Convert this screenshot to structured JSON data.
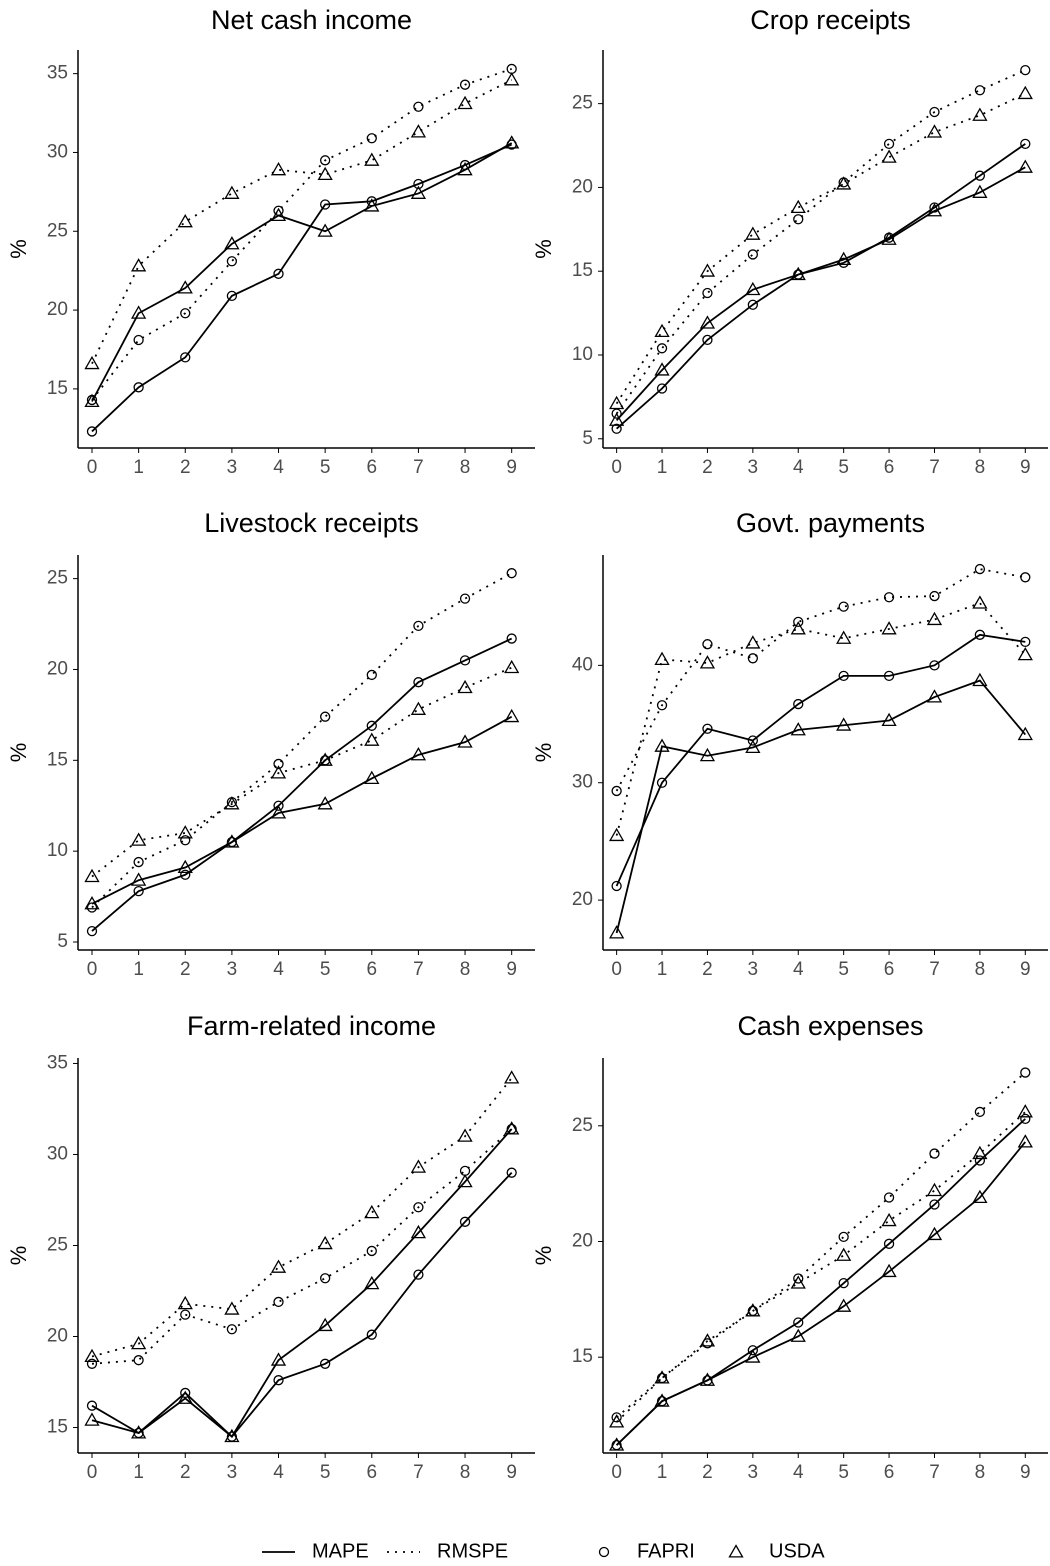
{
  "chart_data": [
    {
      "type": "line",
      "title": "Net cash income",
      "y_label": "%",
      "xlim": [
        -0.3,
        9.5
      ],
      "xticks": [
        0,
        1,
        2,
        3,
        4,
        5,
        6,
        7,
        8,
        9
      ],
      "ylim": [
        11.25,
        36.5
      ],
      "yticks": [
        15,
        20,
        25,
        30,
        35
      ],
      "x": [
        0,
        1,
        2,
        3,
        4,
        5,
        6,
        7,
        8,
        9
      ],
      "series": [
        {
          "linestyle": "solid",
          "marker": "circle",
          "color": "#000000",
          "values": [
            12.3,
            15.1,
            17.0,
            20.9,
            22.3,
            26.7,
            26.9,
            28.0,
            29.2,
            30.5
          ]
        },
        {
          "linestyle": "solid",
          "marker": "triangle",
          "color": "#000000",
          "values": [
            14.2,
            19.8,
            21.4,
            24.2,
            26.0,
            25.0,
            26.6,
            27.4,
            28.9,
            30.6
          ]
        },
        {
          "linestyle": "dotted",
          "marker": "circle",
          "color": "#000000",
          "values": [
            14.3,
            18.1,
            19.8,
            23.1,
            26.3,
            29.5,
            30.9,
            32.9,
            34.3,
            35.3
          ]
        },
        {
          "linestyle": "dotted",
          "marker": "triangle",
          "color": "#000000",
          "values": [
            16.6,
            22.8,
            25.6,
            27.4,
            28.9,
            28.6,
            29.5,
            31.3,
            33.1,
            34.6
          ]
        }
      ]
    },
    {
      "type": "line",
      "title": "Crop receipts",
      "y_label": "%",
      "xlim": [
        -0.3,
        9.5
      ],
      "xticks": [
        0,
        1,
        2,
        3,
        4,
        5,
        6,
        7,
        8,
        9
      ],
      "ylim": [
        4.45,
        28.2
      ],
      "yticks": [
        5,
        10,
        15,
        20,
        25
      ],
      "x": [
        0,
        1,
        2,
        3,
        4,
        5,
        6,
        7,
        8,
        9
      ],
      "series": [
        {
          "linestyle": "solid",
          "marker": "circle",
          "color": "#000000",
          "values": [
            5.6,
            8.0,
            10.9,
            13.0,
            14.8,
            15.5,
            17.0,
            18.8,
            20.7,
            22.6
          ]
        },
        {
          "linestyle": "solid",
          "marker": "triangle",
          "color": "#000000",
          "values": [
            6.1,
            9.1,
            11.9,
            13.9,
            14.8,
            15.7,
            16.9,
            18.6,
            19.7,
            21.2
          ]
        },
        {
          "linestyle": "dotted",
          "marker": "circle",
          "color": "#000000",
          "values": [
            6.5,
            10.4,
            13.7,
            16.0,
            18.1,
            20.3,
            22.6,
            24.5,
            25.8,
            27.0
          ]
        },
        {
          "linestyle": "dotted",
          "marker": "triangle",
          "color": "#000000",
          "values": [
            7.1,
            11.4,
            15.0,
            17.2,
            18.8,
            20.2,
            21.8,
            23.3,
            24.3,
            25.6
          ]
        }
      ]
    },
    {
      "type": "line",
      "title": "Livestock receipts",
      "y_label": "%",
      "xlim": [
        -0.3,
        9.5
      ],
      "xticks": [
        0,
        1,
        2,
        3,
        4,
        5,
        6,
        7,
        8,
        9
      ],
      "ylim": [
        4.56,
        26.3
      ],
      "yticks": [
        5,
        10,
        15,
        20,
        25
      ],
      "x": [
        0,
        1,
        2,
        3,
        4,
        5,
        6,
        7,
        8,
        9
      ],
      "series": [
        {
          "linestyle": "solid",
          "marker": "circle",
          "color": "#000000",
          "values": [
            5.6,
            7.8,
            8.7,
            10.5,
            12.5,
            15.0,
            16.9,
            19.3,
            20.5,
            21.7
          ]
        },
        {
          "linestyle": "solid",
          "marker": "triangle",
          "color": "#000000",
          "values": [
            7.1,
            8.4,
            9.1,
            10.5,
            12.1,
            12.6,
            14.0,
            15.3,
            16.0,
            17.4
          ]
        },
        {
          "linestyle": "dotted",
          "marker": "circle",
          "color": "#000000",
          "values": [
            6.9,
            9.4,
            10.6,
            12.7,
            14.8,
            17.4,
            19.7,
            22.4,
            23.9,
            25.3
          ]
        },
        {
          "linestyle": "dotted",
          "marker": "triangle",
          "color": "#000000",
          "values": [
            8.6,
            10.6,
            11.0,
            12.6,
            14.3,
            15.0,
            16.1,
            17.8,
            19.0,
            20.1
          ]
        }
      ]
    },
    {
      "type": "line",
      "title": "Govt. payments",
      "y_label": "%",
      "xlim": [
        -0.3,
        9.5
      ],
      "xticks": [
        0,
        1,
        2,
        3,
        4,
        5,
        6,
        7,
        8,
        9
      ],
      "ylim": [
        15.75,
        49.4
      ],
      "yticks": [
        20,
        30,
        40
      ],
      "x": [
        0,
        1,
        2,
        3,
        4,
        5,
        6,
        7,
        8,
        9
      ],
      "series": [
        {
          "linestyle": "solid",
          "marker": "circle",
          "color": "#000000",
          "values": [
            21.2,
            30.0,
            34.6,
            33.6,
            36.7,
            39.1,
            39.1,
            40.0,
            42.6,
            42.0
          ]
        },
        {
          "linestyle": "solid",
          "marker": "triangle",
          "color": "#000000",
          "values": [
            17.2,
            33.1,
            32.3,
            33.0,
            34.5,
            34.9,
            35.3,
            37.3,
            38.7,
            34.1
          ]
        },
        {
          "linestyle": "dotted",
          "marker": "circle",
          "color": "#000000",
          "values": [
            29.3,
            36.6,
            41.8,
            40.6,
            43.7,
            45.0,
            45.8,
            45.9,
            48.2,
            47.5
          ]
        },
        {
          "linestyle": "dotted",
          "marker": "triangle",
          "color": "#000000",
          "values": [
            25.5,
            40.5,
            40.2,
            41.9,
            43.1,
            42.3,
            43.1,
            43.9,
            45.3,
            40.9
          ]
        }
      ]
    },
    {
      "type": "line",
      "title": "Farm-related income",
      "y_label": "%",
      "xlim": [
        -0.3,
        9.5
      ],
      "xticks": [
        0,
        1,
        2,
        3,
        4,
        5,
        6,
        7,
        8,
        9
      ],
      "ylim": [
        13.6,
        35.3
      ],
      "yticks": [
        15,
        20,
        25,
        30,
        35
      ],
      "x": [
        0,
        1,
        2,
        3,
        4,
        5,
        6,
        7,
        8,
        9
      ],
      "series": [
        {
          "linestyle": "solid",
          "marker": "circle",
          "color": "#000000",
          "values": [
            16.2,
            14.7,
            16.9,
            14.5,
            17.6,
            18.5,
            20.1,
            23.4,
            26.3,
            29.0
          ]
        },
        {
          "linestyle": "solid",
          "marker": "triangle",
          "color": "#000000",
          "values": [
            15.4,
            14.7,
            16.6,
            14.5,
            18.7,
            20.6,
            22.9,
            25.7,
            28.5,
            31.4
          ]
        },
        {
          "linestyle": "dotted",
          "marker": "circle",
          "color": "#000000",
          "values": [
            18.5,
            18.7,
            21.2,
            20.4,
            21.9,
            23.2,
            24.7,
            27.1,
            29.1,
            31.4
          ]
        },
        {
          "linestyle": "dotted",
          "marker": "triangle",
          "color": "#000000",
          "values": [
            18.9,
            19.6,
            21.8,
            21.5,
            23.8,
            25.1,
            26.8,
            29.3,
            31.0,
            34.2
          ]
        }
      ]
    },
    {
      "type": "line",
      "title": "Cash expenses",
      "y_label": "%",
      "xlim": [
        -0.3,
        9.5
      ],
      "xticks": [
        0,
        1,
        2,
        3,
        4,
        5,
        6,
        7,
        8,
        9
      ],
      "ylim": [
        10.86,
        27.93
      ],
      "yticks": [
        15,
        20,
        25
      ],
      "x": [
        0,
        1,
        2,
        3,
        4,
        5,
        6,
        7,
        8,
        9
      ],
      "series": [
        {
          "linestyle": "solid",
          "marker": "circle",
          "color": "#000000",
          "values": [
            11.2,
            13.1,
            14.0,
            15.3,
            16.5,
            18.2,
            19.9,
            21.6,
            23.5,
            25.3
          ]
        },
        {
          "linestyle": "solid",
          "marker": "triangle",
          "color": "#000000",
          "values": [
            11.2,
            13.1,
            14.0,
            15.0,
            15.9,
            17.2,
            18.7,
            20.3,
            21.9,
            24.3
          ]
        },
        {
          "linestyle": "dotted",
          "marker": "circle",
          "color": "#000000",
          "values": [
            12.4,
            14.1,
            15.6,
            17.0,
            18.4,
            20.2,
            21.9,
            23.8,
            25.6,
            27.3
          ]
        },
        {
          "linestyle": "dotted",
          "marker": "triangle",
          "color": "#000000",
          "values": [
            12.2,
            14.1,
            15.7,
            17.0,
            18.2,
            19.4,
            20.9,
            22.2,
            23.8,
            25.6
          ]
        }
      ]
    }
  ],
  "legend": [
    {
      "label": "MAPE",
      "linestyle": "solid"
    },
    {
      "label": "RMSPE",
      "linestyle": "dotted"
    },
    {
      "label": "FAPRI",
      "marker": "circle"
    },
    {
      "label": "USDA",
      "marker": "triangle"
    }
  ]
}
